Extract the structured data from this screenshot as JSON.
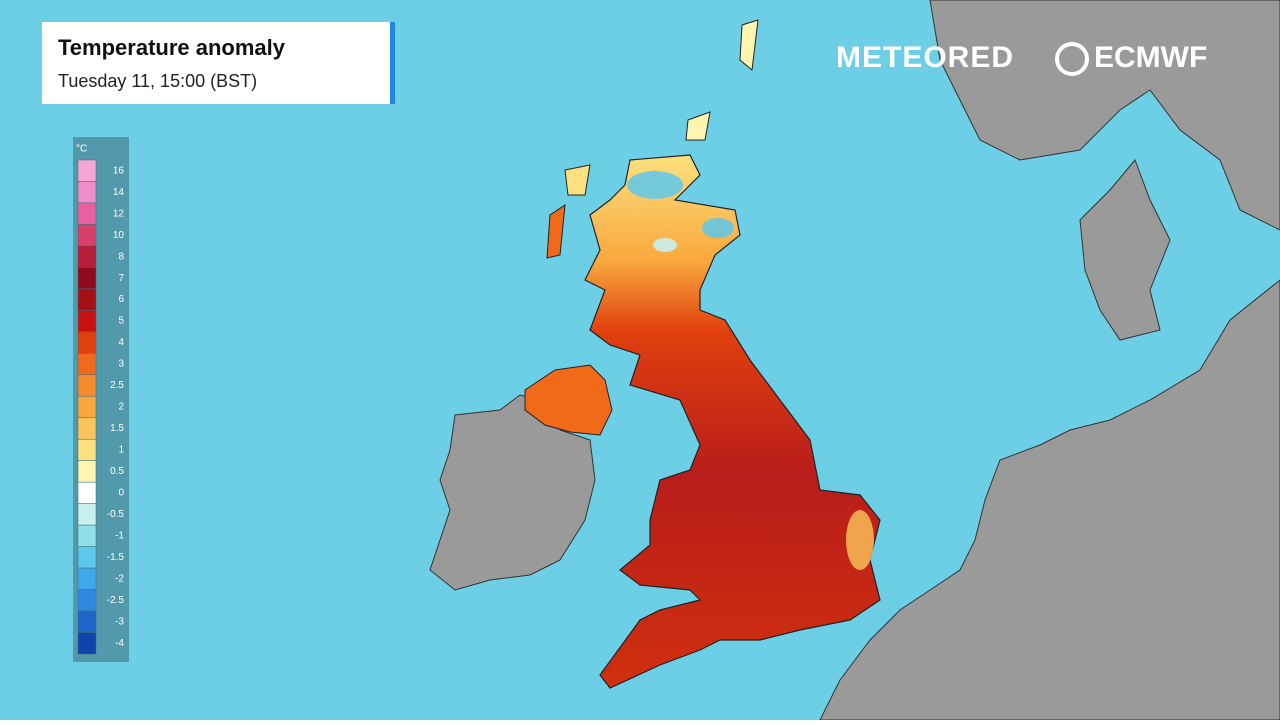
{
  "header": {
    "title": "Temperature anomaly",
    "subtitle": "Tuesday 11, 15:00 (BST)"
  },
  "logos": {
    "brand": "METEORED",
    "partner": "ECMWF"
  },
  "legend": {
    "unit": "°C",
    "items": [
      {
        "label": "16",
        "color": "#f4a6d7"
      },
      {
        "label": "14",
        "color": "#f08cc8"
      },
      {
        "label": "12",
        "color": "#e8609e"
      },
      {
        "label": "10",
        "color": "#d94068"
      },
      {
        "label": "8",
        "color": "#b81d3a"
      },
      {
        "label": "7",
        "color": "#8e0a1a"
      },
      {
        "label": "6",
        "color": "#a50f15"
      },
      {
        "label": "5",
        "color": "#c8100e"
      },
      {
        "label": "4",
        "color": "#e0400e"
      },
      {
        "label": "3",
        "color": "#f06a1a"
      },
      {
        "label": "2.5",
        "color": "#f58a2a"
      },
      {
        "label": "2",
        "color": "#f9a83d"
      },
      {
        "label": "1.5",
        "color": "#fbc45a"
      },
      {
        "label": "1",
        "color": "#fde07f"
      },
      {
        "label": "0.5",
        "color": "#fff4b0"
      },
      {
        "label": "0",
        "color": "#ffffff"
      },
      {
        "label": "-0.5",
        "color": "#c8f0ee"
      },
      {
        "label": "-1",
        "color": "#8fe0e8"
      },
      {
        "label": "-1.5",
        "color": "#5cc8ec"
      },
      {
        "label": "-2",
        "color": "#3fa8ec"
      },
      {
        "label": "-2.5",
        "color": "#2e88e0"
      },
      {
        "label": "-3",
        "color": "#1e66c8"
      },
      {
        "label": "-4",
        "color": "#1144a8"
      }
    ]
  }
}
